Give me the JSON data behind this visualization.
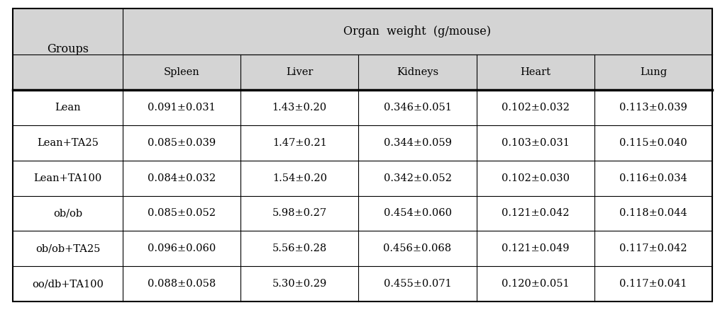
{
  "title": "Organ  weight  (g/mouse)",
  "col_header": [
    "Spleen",
    "Liver",
    "Kidneys",
    "Heart",
    "Lung"
  ],
  "row_header": [
    "Groups",
    "Lean",
    "Lean+TA25",
    "Lean+TA100",
    "ob/ob",
    "ob/ob+TA25",
    "oo/db+TA100"
  ],
  "table_data": [
    [
      "0.091±0.031",
      "1.43±0.20",
      "0.346±0.051",
      "0.102±0.032",
      "0.113±0.039"
    ],
    [
      "0.085±0.039",
      "1.47±0.21",
      "0.344±0.059",
      "0.103±0.031",
      "0.115±0.040"
    ],
    [
      "0.084±0.032",
      "1.54±0.20",
      "0.342±0.052",
      "0.102±0.030",
      "0.116±0.034"
    ],
    [
      "0.085±0.052",
      "5.98±0.27",
      "0.454±0.060",
      "0.121±0.042",
      "0.118±0.044"
    ],
    [
      "0.096±0.060",
      "5.56±0.28",
      "0.456±0.068",
      "0.121±0.049",
      "0.117±0.042"
    ],
    [
      "0.088±0.058",
      "5.30±0.29",
      "0.455±0.071",
      "0.120±0.051",
      "0.117±0.041"
    ]
  ],
  "header_bg": "#d4d4d4",
  "cell_bg": "#ffffff",
  "border_color": "#000000",
  "text_color": "#000000",
  "font_size": 10.5,
  "header_font_size": 11.5,
  "fig_width": 10.22,
  "fig_height": 4.38,
  "dpi": 100
}
